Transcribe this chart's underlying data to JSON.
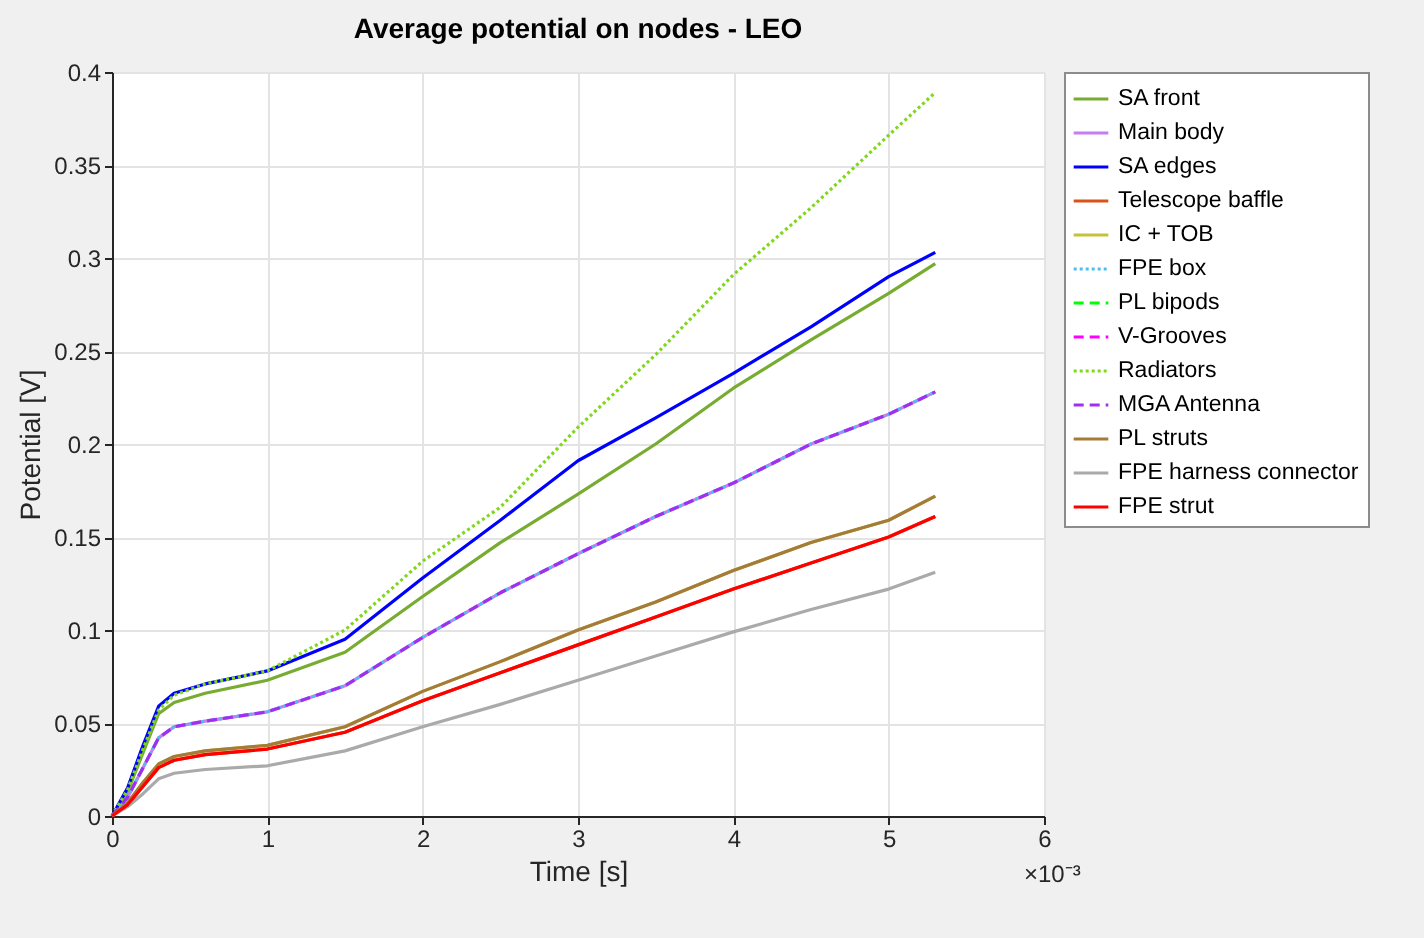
{
  "chart_data": {
    "type": "line",
    "title": "Average potential on nodes - LEO",
    "xlabel": "Time [s]",
    "ylabel": "Potential [V]",
    "annotations": [
      "×10⁻³"
    ],
    "x": [
      0,
      0.1,
      0.2,
      0.3,
      0.4,
      0.6,
      1,
      1.5,
      2,
      2.5,
      3,
      3.5,
      4,
      4.5,
      5,
      5.3
    ],
    "series": [
      {
        "name": "SA front",
        "color": "#77ac30",
        "line_style": "solid",
        "values": [
          0,
          0.013,
          0.034,
          0.055,
          0.061,
          0.066,
          0.073,
          0.088,
          0.118,
          0.147,
          0.173,
          0.2,
          0.23,
          0.256,
          0.281,
          0.297
        ]
      },
      {
        "name": "Main body",
        "color": "#c77cf2",
        "line_style": "solid",
        "values": [
          0,
          0.01,
          0.026,
          0.042,
          0.048,
          0.051,
          0.056,
          0.07,
          0.096,
          0.12,
          0.141,
          0.161,
          0.179,
          0.2,
          0.216,
          0.228
        ]
      },
      {
        "name": "SA edges",
        "color": "#0000ff",
        "line_style": "solid",
        "values": [
          0,
          0.015,
          0.038,
          0.059,
          0.066,
          0.071,
          0.078,
          0.095,
          0.128,
          0.159,
          0.191,
          0.214,
          0.238,
          0.263,
          0.29,
          0.303
        ]
      },
      {
        "name": "Telescope baffle",
        "color": "#d95319",
        "line_style": "solid",
        "values": [
          0,
          0.006,
          0.016,
          0.026,
          0.03,
          0.033,
          0.036,
          0.045,
          0.062,
          0.077,
          0.092,
          0.107,
          0.122,
          0.136,
          0.15,
          0.161
        ]
      },
      {
        "name": "IC + TOB",
        "color": "#c4c23a",
        "line_style": "solid",
        "values": [
          0,
          0.007,
          0.018,
          0.028,
          0.032,
          0.035,
          0.038,
          0.048,
          0.067,
          0.083,
          0.1,
          0.115,
          0.132,
          0.147,
          0.159,
          0.172
        ]
      },
      {
        "name": "FPE box",
        "color": "#4dbeee",
        "line_style": "dotted",
        "values": [
          0,
          0.01,
          0.026,
          0.042,
          0.048,
          0.051,
          0.056,
          0.07,
          0.096,
          0.12,
          0.141,
          0.161,
          0.179,
          0.2,
          0.216,
          0.228
        ]
      },
      {
        "name": "PL bipods",
        "color": "#00ff00",
        "line_style": "dashed",
        "values": [
          null,
          null,
          null,
          null,
          null,
          null,
          null,
          null,
          null,
          null,
          null,
          null,
          null,
          null,
          null,
          null
        ]
      },
      {
        "name": "V-Grooves",
        "color": "#ff00ff",
        "line_style": "dashed",
        "values": [
          null,
          null,
          null,
          null,
          null,
          null,
          null,
          null,
          null,
          null,
          null,
          null,
          null,
          null,
          null,
          null
        ]
      },
      {
        "name": "Radiators",
        "color": "#7fd81a",
        "line_style": "dotted",
        "values": [
          0,
          0.014,
          0.036,
          0.057,
          0.065,
          0.071,
          0.078,
          0.1,
          0.137,
          0.166,
          0.209,
          0.248,
          0.291,
          0.327,
          0.366,
          0.389
        ]
      },
      {
        "name": "MGA Antenna",
        "color": "#a030f0",
        "line_style": "dashed",
        "values": [
          0,
          0.01,
          0.026,
          0.042,
          0.048,
          0.051,
          0.056,
          0.07,
          0.096,
          0.12,
          0.141,
          0.161,
          0.179,
          0.2,
          0.216,
          0.228
        ]
      },
      {
        "name": "PL struts",
        "color": "#a57b3a",
        "line_style": "solid",
        "values": [
          0,
          0.007,
          0.018,
          0.028,
          0.032,
          0.035,
          0.038,
          0.048,
          0.067,
          0.083,
          0.1,
          0.115,
          0.132,
          0.147,
          0.159,
          0.172
        ]
      },
      {
        "name": "FPE harness connector",
        "color": "#aaaaaa",
        "line_style": "solid",
        "values": [
          0,
          0.005,
          0.012,
          0.02,
          0.023,
          0.025,
          0.027,
          0.035,
          0.048,
          0.06,
          0.073,
          0.086,
          0.099,
          0.111,
          0.122,
          0.131
        ]
      },
      {
        "name": "FPE strut",
        "color": "#ff0000",
        "line_style": "solid",
        "values": [
          0,
          0.006,
          0.016,
          0.026,
          0.03,
          0.033,
          0.036,
          0.045,
          0.062,
          0.077,
          0.092,
          0.107,
          0.122,
          0.136,
          0.15,
          0.161
        ]
      }
    ],
    "xlim": [
      0,
      6
    ],
    "xticks": [
      0,
      1,
      2,
      3,
      4,
      5,
      6
    ],
    "ylim": [
      0,
      0.4
    ],
    "yticks": [
      0,
      0.05,
      0.1,
      0.15,
      0.2,
      0.25,
      0.3,
      0.35,
      0.4
    ],
    "grid": true,
    "legend": "right"
  }
}
